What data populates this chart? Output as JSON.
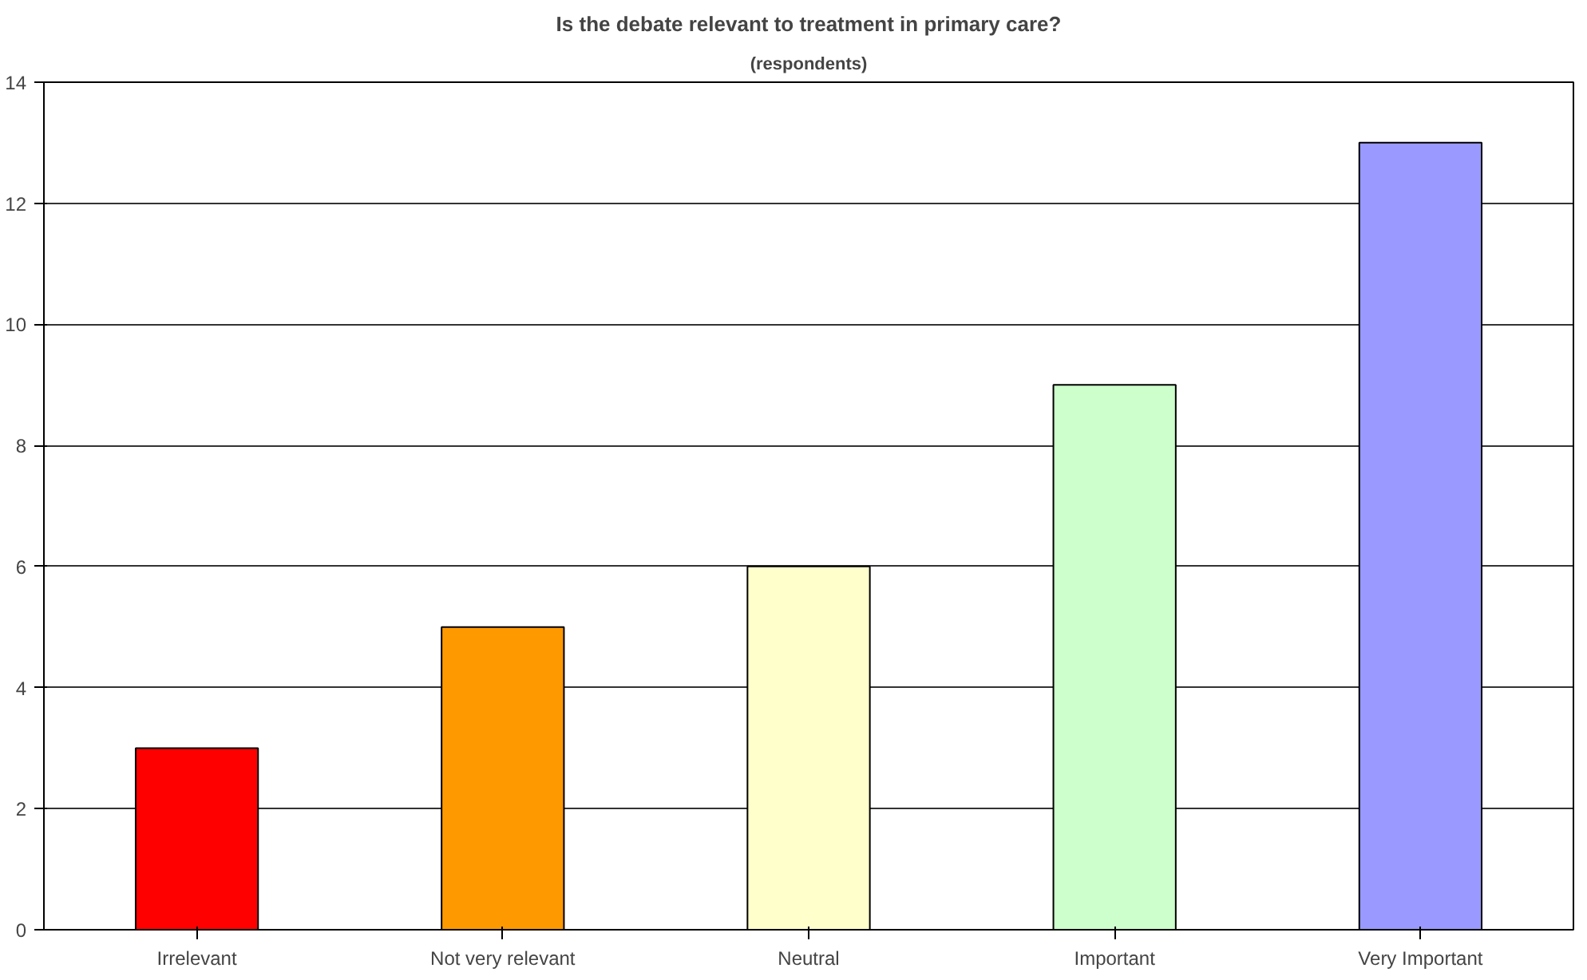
{
  "chart_data": {
    "type": "bar",
    "title": "Is the debate relevant to treatment in primary care?",
    "subtitle": "(respondents)",
    "categories": [
      "Irrelevant",
      "Not very relevant",
      "Neutral",
      "Important",
      "Very Important"
    ],
    "values": [
      3,
      5,
      6,
      9,
      13
    ],
    "colors": [
      "#ff0000",
      "#ff9900",
      "#ffffcc",
      "#ccffcc",
      "#9999ff"
    ],
    "ylim": [
      0,
      14
    ],
    "yticks": [
      0,
      2,
      4,
      6,
      8,
      10,
      12,
      14
    ],
    "grid": "y"
  }
}
